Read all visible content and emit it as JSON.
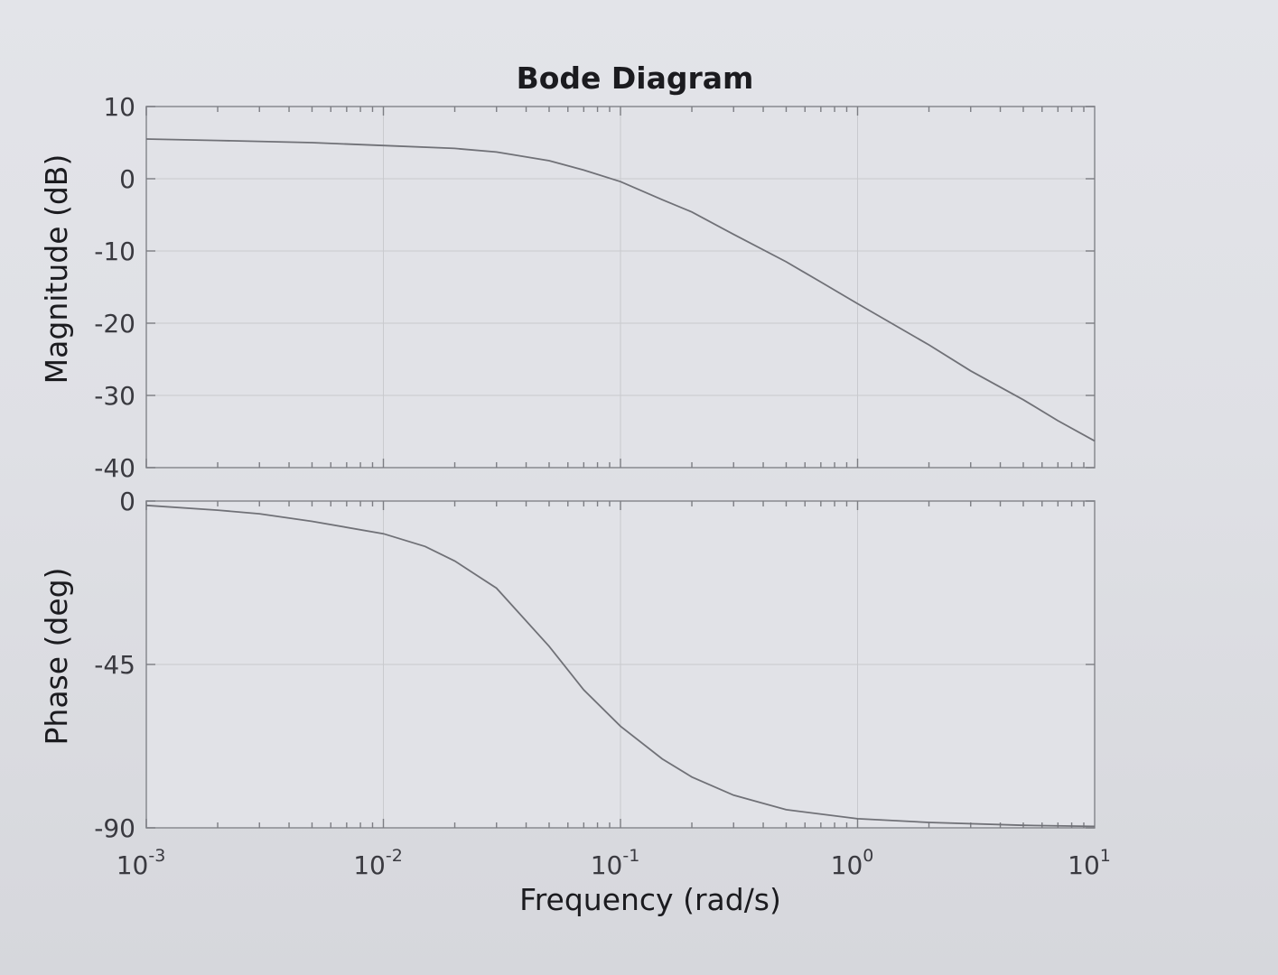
{
  "chart_data": [
    {
      "type": "line",
      "panel": "magnitude",
      "title": "Bode Diagram",
      "ylabel": "Magnitude (dB)",
      "xscale": "log",
      "xlim": [
        0.001,
        10
      ],
      "ylim": [
        -40,
        10
      ],
      "yticks": [
        "10",
        "0",
        "-10",
        "-20",
        "-30",
        "-40"
      ],
      "grid": true,
      "series": [
        {
          "x": [
            0.001,
            0.002,
            0.005,
            0.01,
            0.02,
            0.03,
            0.05,
            0.07,
            0.1,
            0.15,
            0.2,
            0.3,
            0.5,
            0.7,
            1,
            2,
            3,
            5,
            7,
            10
          ],
          "values": [
            5.5,
            5.3,
            5.0,
            4.6,
            4.2,
            3.7,
            2.5,
            1.2,
            -0.4,
            -2.9,
            -4.6,
            -7.7,
            -11.5,
            -14.3,
            -17.3,
            -23.0,
            -26.6,
            -30.6,
            -33.5,
            -36.3
          ]
        }
      ]
    },
    {
      "type": "line",
      "panel": "phase",
      "xlabel": "Frequency  (rad/s)",
      "ylabel": "Phase (deg)",
      "xscale": "log",
      "xlim": [
        0.001,
        10
      ],
      "ylim": [
        -90,
        0
      ],
      "yticks": [
        "0",
        "-45",
        "-90"
      ],
      "xticks": [
        {
          "base": "10",
          "exp": "-3"
        },
        {
          "base": "10",
          "exp": "-2"
        },
        {
          "base": "10",
          "exp": "-1"
        },
        {
          "base": "10",
          "exp": "0"
        },
        {
          "base": "10",
          "exp": "1"
        }
      ],
      "grid": true,
      "series": [
        {
          "x": [
            0.001,
            0.002,
            0.003,
            0.005,
            0.01,
            0.015,
            0.02,
            0.03,
            0.05,
            0.07,
            0.1,
            0.15,
            0.2,
            0.3,
            0.5,
            1,
            2,
            5,
            10
          ],
          "values": [
            -1.2,
            -2.5,
            -3.5,
            -5.6,
            -9.0,
            -12.5,
            -16.5,
            -24.0,
            -40.0,
            -52.0,
            -62.0,
            -71.0,
            -76.0,
            -81.0,
            -85.0,
            -87.5,
            -88.5,
            -89.3,
            -89.6
          ]
        }
      ]
    }
  ]
}
